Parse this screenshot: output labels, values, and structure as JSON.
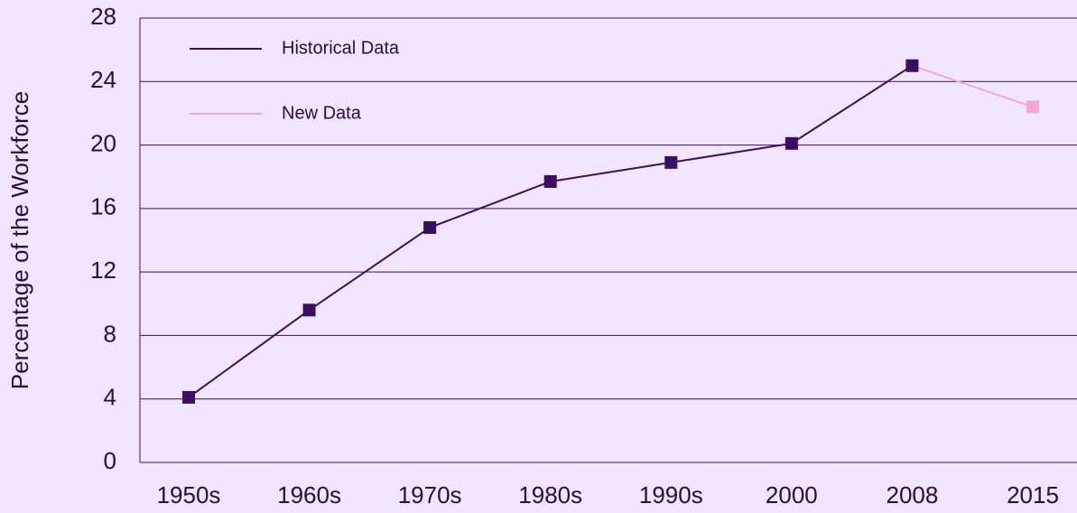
{
  "chart_data": {
    "type": "line",
    "y_label": "Percentage of the Workforce",
    "categories": [
      "1950s",
      "1960s",
      "1970s",
      "1980s",
      "1990s",
      "2000",
      "2008",
      "2015"
    ],
    "series": [
      {
        "name": "Historical Data",
        "color": "#3b0d63",
        "values": [
          4.1,
          9.6,
          14.8,
          17.7,
          18.9,
          20.1,
          25.0,
          null
        ]
      },
      {
        "name": "New Data",
        "color": "#f6a6d6",
        "values": [
          null,
          null,
          null,
          null,
          null,
          null,
          25.0,
          22.4
        ]
      }
    ],
    "ylim": [
      0,
      28
    ],
    "yticks": [
      0,
      4,
      8,
      12,
      16,
      20,
      24,
      28
    ],
    "grid": true,
    "legend": "upper left"
  }
}
